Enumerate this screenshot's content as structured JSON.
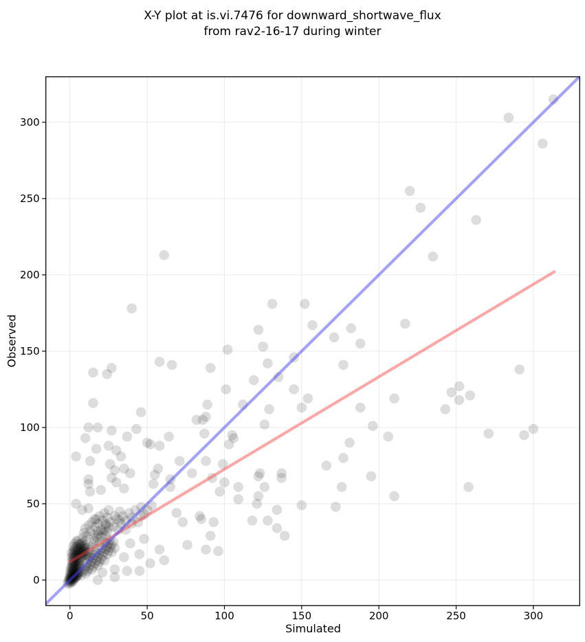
{
  "chart_data": {
    "type": "scatter",
    "title": "X-Y plot at is.vi.7476 for downward_shortwave_flux from rav2-16-17 during winter",
    "title_line1": "X-Y plot at is.vi.7476 for downward_shortwave_flux",
    "title_line2": "from rav2-16-17 during winter",
    "xlabel": "Simulated",
    "ylabel": "Observed",
    "xlim": [
      -15.6,
      330.0
    ],
    "ylim": [
      -16.7,
      329.8
    ],
    "xticks": [
      0,
      50,
      100,
      150,
      200,
      250,
      300
    ],
    "yticks": [
      0,
      50,
      100,
      150,
      200,
      250,
      300
    ],
    "grid": true,
    "legend": "none",
    "marker": {
      "fill": "#000000",
      "opacity": 0.135,
      "radius": 7.3
    },
    "lines": [
      {
        "name": "regression-line",
        "color": "#fa3c3c",
        "opacity": 0.45,
        "width": 4.2,
        "from": [
          0,
          12
        ],
        "to": [
          313.5,
          202
        ]
      },
      {
        "name": "identity-line",
        "color": "#4646f5",
        "opacity": 0.5,
        "width": 4.2,
        "from": [
          -15.6,
          -15.6
        ],
        "to": [
          329.8,
          329.8
        ]
      }
    ],
    "points": [
      [
        313,
        315
      ],
      [
        284,
        303
      ],
      [
        306,
        286
      ],
      [
        220,
        255
      ],
      [
        227,
        244
      ],
      [
        263,
        236
      ],
      [
        235,
        212
      ],
      [
        217,
        168
      ],
      [
        291,
        138
      ],
      [
        210,
        119
      ],
      [
        247,
        123
      ],
      [
        252,
        127
      ],
      [
        252,
        118
      ],
      [
        259,
        121
      ],
      [
        243,
        112
      ],
      [
        206,
        94
      ],
      [
        271,
        96
      ],
      [
        294,
        95
      ],
      [
        300,
        99
      ],
      [
        210,
        55
      ],
      [
        258,
        61
      ],
      [
        131,
        181
      ],
      [
        152,
        181
      ],
      [
        122,
        164
      ],
      [
        157,
        167
      ],
      [
        182,
        165
      ],
      [
        171,
        159
      ],
      [
        188,
        155
      ],
      [
        125,
        153
      ],
      [
        102,
        151
      ],
      [
        145,
        146
      ],
      [
        128,
        142
      ],
      [
        177,
        141
      ],
      [
        91,
        139
      ],
      [
        135,
        133
      ],
      [
        119,
        131
      ],
      [
        101,
        125
      ],
      [
        145,
        125
      ],
      [
        154,
        119
      ],
      [
        89,
        115
      ],
      [
        112,
        115
      ],
      [
        150,
        113
      ],
      [
        129,
        112
      ],
      [
        188,
        113
      ],
      [
        88,
        107
      ],
      [
        82,
        105
      ],
      [
        86,
        105
      ],
      [
        126,
        102
      ],
      [
        196,
        101
      ],
      [
        87,
        96
      ],
      [
        105,
        95
      ],
      [
        106,
        93
      ],
      [
        103,
        89
      ],
      [
        181,
        90
      ],
      [
        88,
        78
      ],
      [
        99,
        76
      ],
      [
        177,
        80
      ],
      [
        166,
        75
      ],
      [
        123,
        70
      ],
      [
        137,
        70
      ],
      [
        61,
        213
      ],
      [
        40,
        178
      ],
      [
        15,
        136
      ],
      [
        24,
        135
      ],
      [
        27,
        139
      ],
      [
        58,
        143
      ],
      [
        66,
        141
      ],
      [
        15,
        116
      ],
      [
        46,
        110
      ],
      [
        12,
        100
      ],
      [
        18,
        100
      ],
      [
        27,
        98
      ],
      [
        43,
        99
      ],
      [
        10,
        93
      ],
      [
        37,
        94
      ],
      [
        50,
        90
      ],
      [
        52,
        89
      ],
      [
        58,
        88
      ],
      [
        17,
        86
      ],
      [
        25,
        88
      ],
      [
        64,
        94
      ],
      [
        4,
        81
      ],
      [
        13,
        78
      ],
      [
        30,
        85
      ],
      [
        33,
        81
      ],
      [
        26,
        76
      ],
      [
        29,
        72
      ],
      [
        35,
        73
      ],
      [
        27,
        67
      ],
      [
        39,
        70
      ],
      [
        30,
        64
      ],
      [
        12,
        66
      ],
      [
        55,
        69
      ],
      [
        57,
        73
      ],
      [
        71,
        78
      ],
      [
        65,
        66
      ],
      [
        79,
        70
      ],
      [
        92,
        67
      ],
      [
        100,
        64
      ],
      [
        97,
        58
      ],
      [
        109,
        61
      ],
      [
        122,
        68
      ],
      [
        137,
        67
      ],
      [
        126,
        61
      ],
      [
        109,
        53
      ],
      [
        122,
        55
      ],
      [
        121,
        50
      ],
      [
        150,
        49
      ],
      [
        172,
        48
      ],
      [
        176,
        61
      ],
      [
        195,
        68
      ],
      [
        134,
        46
      ],
      [
        118,
        39
      ],
      [
        128,
        39
      ],
      [
        93,
        38
      ],
      [
        84,
        42
      ],
      [
        134,
        34
      ],
      [
        91,
        29
      ],
      [
        139,
        29
      ],
      [
        96,
        19
      ],
      [
        12,
        63
      ],
      [
        13,
        58
      ],
      [
        20,
        59
      ],
      [
        35,
        60
      ],
      [
        54,
        63
      ],
      [
        65,
        61
      ],
      [
        4,
        50
      ],
      [
        8,
        46
      ],
      [
        12,
        47
      ],
      [
        16,
        40
      ],
      [
        18,
        32
      ],
      [
        23,
        37
      ],
      [
        29,
        42
      ],
      [
        32,
        39
      ],
      [
        36,
        33
      ],
      [
        40,
        37
      ],
      [
        46,
        42
      ],
      [
        48,
        27
      ],
      [
        39,
        24
      ],
      [
        29,
        21
      ],
      [
        35,
        15
      ],
      [
        45,
        17
      ],
      [
        58,
        20
      ],
      [
        61,
        13
      ],
      [
        52,
        11
      ],
      [
        45,
        6
      ],
      [
        37,
        6
      ],
      [
        29,
        7
      ],
      [
        21,
        5
      ],
      [
        29,
        2
      ],
      [
        18,
        0
      ],
      [
        69,
        44
      ],
      [
        73,
        38
      ],
      [
        76,
        23
      ],
      [
        85,
        40
      ],
      [
        88,
        20
      ]
    ],
    "cluster_points": [
      [
        -1.5,
        -2.1
      ],
      [
        -1.1,
        -0.6
      ],
      [
        -0.6,
        0.4
      ],
      [
        -0.2,
        -2.4
      ],
      [
        0,
        -1.2
      ],
      [
        0.1,
        0.2
      ],
      [
        -0.3,
        1.4
      ],
      [
        0.4,
        -0.6
      ],
      [
        0.6,
        1.9
      ],
      [
        0.9,
        -1.4
      ],
      [
        1.1,
        0.1
      ],
      [
        0.8,
        1.2
      ],
      [
        1.2,
        2.9
      ],
      [
        1.4,
        0.6
      ],
      [
        1.6,
        2.4
      ],
      [
        1.9,
        -0.9
      ],
      [
        2.1,
        1.1
      ],
      [
        1.8,
        2.2
      ],
      [
        2.2,
        3.9
      ],
      [
        2.4,
        0.1
      ],
      [
        2.6,
        3.1
      ],
      [
        2.9,
        1.2
      ],
      [
        3.1,
        2.4
      ],
      [
        2.8,
        4.9
      ],
      [
        3.4,
        1.6
      ],
      [
        3.6,
        4.1
      ],
      [
        3.9,
        2.1
      ],
      [
        4.1,
        3.6
      ],
      [
        3.8,
        5.9
      ],
      [
        4.6,
        2.6
      ],
      [
        4.9,
        3.1
      ],
      [
        5.1,
        4.9
      ],
      [
        4.8,
        7.1
      ],
      [
        5.4,
        4.1
      ],
      [
        5.9,
        5.2
      ],
      [
        6.1,
        7.9
      ],
      [
        -0.1,
        2.9
      ],
      [
        1.1,
        4.4
      ],
      [
        2.1,
        5.6
      ],
      [
        3.1,
        6.9
      ],
      [
        1.6,
        6.1
      ],
      [
        2.4,
        7.4
      ],
      [
        0.6,
        4.1
      ],
      [
        1.1,
        6.9
      ],
      [
        1.9,
        8.6
      ],
      [
        3.1,
        8.9
      ],
      [
        4.1,
        7.9
      ],
      [
        4.9,
        9.4
      ],
      [
        0.1,
        5.4
      ],
      [
        1.2,
        8.9
      ],
      [
        2.1,
        9.9
      ],
      [
        3.4,
        10.4
      ],
      [
        4.4,
        11.1
      ],
      [
        5.6,
        11.9
      ],
      [
        6.1,
        10.4
      ],
      [
        6.4,
        9.1
      ],
      [
        0.4,
        7.9
      ],
      [
        1.6,
        10.9
      ],
      [
        2.6,
        11.9
      ],
      [
        5.9,
        12.9
      ],
      [
        1.2,
        12.4
      ],
      [
        2.1,
        13.6
      ],
      [
        2.9,
        11.9
      ],
      [
        3.1,
        14.4
      ],
      [
        4.1,
        13.1
      ],
      [
        3.9,
        15.6
      ],
      [
        5.1,
        13.9
      ],
      [
        4.9,
        16.4
      ],
      [
        6.1,
        14.9
      ],
      [
        5.9,
        17.1
      ],
      [
        7.1,
        14.4
      ],
      [
        6.9,
        16.1
      ],
      [
        7.2,
        17.9
      ],
      [
        8.1,
        15.4
      ],
      [
        7.9,
        17.6
      ],
      [
        8.2,
        18.9
      ],
      [
        9.1,
        16.6
      ],
      [
        8.9,
        18.4
      ],
      [
        2.2,
        14.9
      ],
      [
        1.9,
        16.9
      ],
      [
        3.2,
        16.4
      ],
      [
        2.9,
        18.1
      ],
      [
        4.2,
        17.4
      ],
      [
        3.9,
        19.4
      ],
      [
        5.2,
        18.6
      ],
      [
        4.9,
        19.9
      ],
      [
        6.2,
        18.9
      ],
      [
        5.9,
        20.9
      ],
      [
        7.2,
        19.9
      ],
      [
        6.9,
        21.9
      ],
      [
        8.2,
        20.9
      ],
      [
        9.2,
        20.4
      ],
      [
        8.9,
        22.4
      ],
      [
        10.1,
        18.9
      ],
      [
        9.9,
        21.4
      ],
      [
        3.2,
        20.4
      ],
      [
        4.2,
        21.9
      ],
      [
        5.2,
        22.9
      ],
      [
        6.2,
        23.9
      ],
      [
        7.2,
        23.4
      ],
      [
        8.1,
        24.4
      ],
      [
        2.2,
        19.4
      ],
      [
        1.1,
        14.9
      ],
      [
        0.9,
        17.9
      ],
      [
        2.1,
        21.9
      ],
      [
        3.1,
        23.9
      ],
      [
        4.1,
        25.4
      ],
      [
        10.2,
        16.9
      ],
      [
        9.9,
        22.9
      ],
      [
        5.1,
        25.9
      ],
      [
        7.2,
        3.1
      ],
      [
        8.1,
        5.4
      ],
      [
        9.3,
        6.8
      ],
      [
        10.2,
        4.2
      ],
      [
        9.8,
        9.1
      ],
      [
        11.4,
        5.9
      ],
      [
        10.9,
        11.2
      ],
      [
        12.1,
        7.6
      ],
      [
        11.8,
        13.4
      ],
      [
        13.2,
        9.8
      ],
      [
        12.7,
        15.1
      ],
      [
        14.3,
        6.9
      ],
      [
        13.9,
        12.2
      ],
      [
        15.1,
        8.7
      ],
      [
        14.8,
        14.3
      ],
      [
        16.2,
        10.9
      ],
      [
        15.7,
        16.4
      ],
      [
        17.3,
        12.8
      ],
      [
        16.8,
        18.1
      ],
      [
        18.2,
        9.7
      ],
      [
        17.8,
        15.2
      ],
      [
        19.1,
        11.9
      ],
      [
        18.7,
        17.3
      ],
      [
        20.3,
        13.8
      ],
      [
        19.8,
        19.4
      ],
      [
        21.2,
        15.7
      ],
      [
        20.7,
        21.1
      ],
      [
        22.3,
        12.9
      ],
      [
        21.8,
        18.2
      ],
      [
        23.1,
        20.3
      ],
      [
        22.7,
        24.8
      ],
      [
        24.2,
        16.8
      ],
      [
        23.8,
        22.1
      ],
      [
        25.1,
        19.2
      ],
      [
        24.7,
        23.9
      ],
      [
        26.2,
        21.3
      ],
      [
        25.8,
        26.1
      ],
      [
        27.1,
        18.4
      ],
      [
        26.8,
        23.2
      ],
      [
        28.3,
        24.9
      ],
      [
        11.2,
        15.8
      ],
      [
        12.3,
        18.2
      ],
      [
        13.1,
        19.9
      ],
      [
        14.2,
        21.8
      ],
      [
        15.3,
        23.9
      ],
      [
        16.1,
        25.8
      ],
      [
        17.2,
        27.9
      ],
      [
        18.3,
        29.8
      ],
      [
        19.2,
        24.9
      ],
      [
        20.1,
        28.2
      ],
      [
        21.3,
        30.9
      ],
      [
        22.2,
        32.8
      ],
      [
        23.3,
        29.1
      ],
      [
        24.1,
        31.9
      ],
      [
        25.2,
        34.8
      ],
      [
        8.2,
        27.9
      ],
      [
        9.1,
        30.9
      ],
      [
        10.2,
        25.9
      ],
      [
        9.9,
        33.9
      ],
      [
        11.1,
        28.9
      ],
      [
        12.2,
        35.9
      ],
      [
        13.1,
        31.9
      ],
      [
        14.2,
        37.9
      ],
      [
        15.1,
        29.9
      ],
      [
        16.2,
        34.9
      ],
      [
        17.1,
        39.9
      ],
      [
        18.2,
        36.9
      ],
      [
        19.1,
        41.9
      ],
      [
        20.2,
        32.9
      ],
      [
        21.1,
        38.9
      ],
      [
        22.2,
        43.9
      ],
      [
        23.1,
        35.9
      ],
      [
        24.2,
        40.9
      ],
      [
        25.1,
        45.9
      ],
      [
        26.2,
        37.9
      ],
      [
        28.1,
        34.9
      ],
      [
        30.2,
        39.9
      ],
      [
        31.1,
        32.9
      ],
      [
        32.2,
        44.9
      ],
      [
        33.1,
        36.9
      ],
      [
        34.2,
        41.9
      ],
      [
        36.1,
        38.9
      ],
      [
        38.2,
        43.9
      ],
      [
        40.1,
        40.9
      ],
      [
        42.2,
        45.9
      ],
      [
        44.1,
        37.9
      ],
      [
        46.2,
        47.9
      ],
      [
        48.1,
        42.9
      ],
      [
        50.2,
        45.9
      ],
      [
        52.9,
        48.9
      ]
    ]
  },
  "colors": {
    "background": "#ffffff",
    "grid": "#ebebeb",
    "spine": "#000000",
    "tick_text": "#000000"
  }
}
